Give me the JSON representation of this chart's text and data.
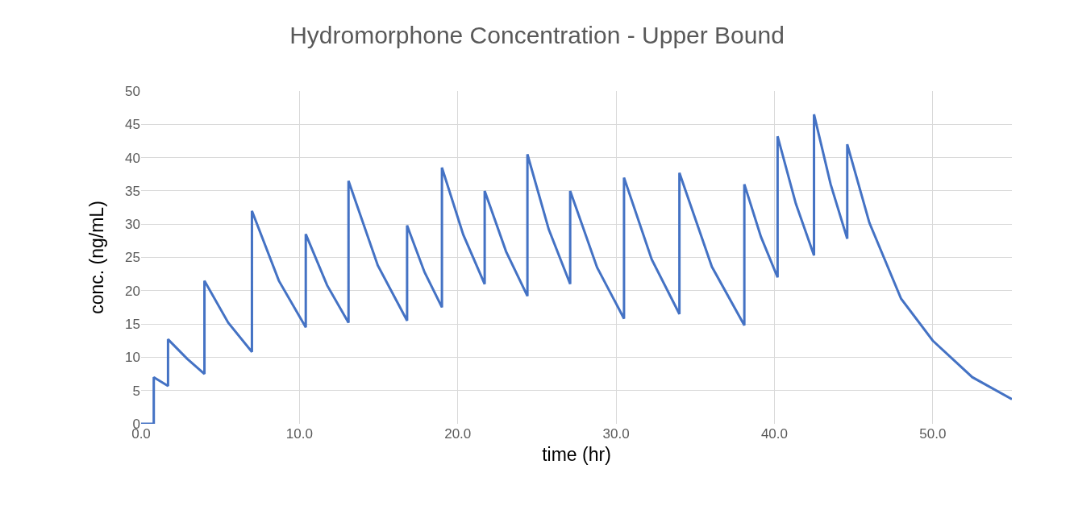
{
  "chart_data": {
    "type": "line",
    "title": "Hydromorphone Concentration - Upper Bound",
    "xlabel": "time (hr)",
    "ylabel": "conc. (ng/mL)",
    "x": [
      0,
      0.8,
      0.8,
      1.7,
      1.7,
      2.9,
      4.0,
      4.0,
      5.5,
      7.0,
      7.0,
      8.7,
      10.4,
      10.4,
      11.75,
      13.1,
      13.1,
      14.95,
      16.8,
      16.8,
      17.9,
      19.0,
      19.0,
      20.35,
      21.7,
      21.7,
      23.05,
      24.4,
      24.4,
      25.75,
      27.1,
      27.1,
      28.8,
      30.5,
      30.5,
      32.25,
      34.0,
      34.0,
      36.05,
      38.1,
      38.1,
      39.15,
      40.2,
      40.2,
      41.35,
      42.5,
      42.5,
      43.55,
      44.6,
      44.6,
      46,
      48,
      50,
      52.5,
      55
    ],
    "series": [
      {
        "color": "#4472c4",
        "values": [
          0,
          0,
          7,
          5.7,
          12.7,
          9.8,
          7.5,
          21.5,
          15.2,
          10.8,
          32,
          21.5,
          14.5,
          28.5,
          20.8,
          15.2,
          36.5,
          23.8,
          15.5,
          29.8,
          22.8,
          17.5,
          38.5,
          28.4,
          21,
          35,
          25.9,
          19.2,
          40.5,
          29.2,
          21,
          35,
          23.5,
          15.8,
          37,
          24.7,
          16.5,
          37.7,
          23.6,
          14.8,
          36,
          28.1,
          22,
          43.2,
          33.1,
          25.3,
          46.5,
          36.0,
          27.8,
          42,
          30.2,
          18.8,
          12.5,
          7,
          3.7
        ]
      }
    ],
    "xlim": [
      0,
      55
    ],
    "ylim": [
      0,
      50
    ],
    "xticks": [
      {
        "value": 0,
        "label": "0.0"
      },
      {
        "value": 10,
        "label": "10.0"
      },
      {
        "value": 20,
        "label": "20.0"
      },
      {
        "value": 30,
        "label": "30.0"
      },
      {
        "value": 40,
        "label": "40.0"
      },
      {
        "value": 50,
        "label": "50.0"
      }
    ],
    "yticks": [
      0,
      5,
      10,
      15,
      20,
      25,
      30,
      35,
      40,
      45,
      50
    ],
    "grid": true,
    "marker": "none",
    "line_style": "solid"
  }
}
